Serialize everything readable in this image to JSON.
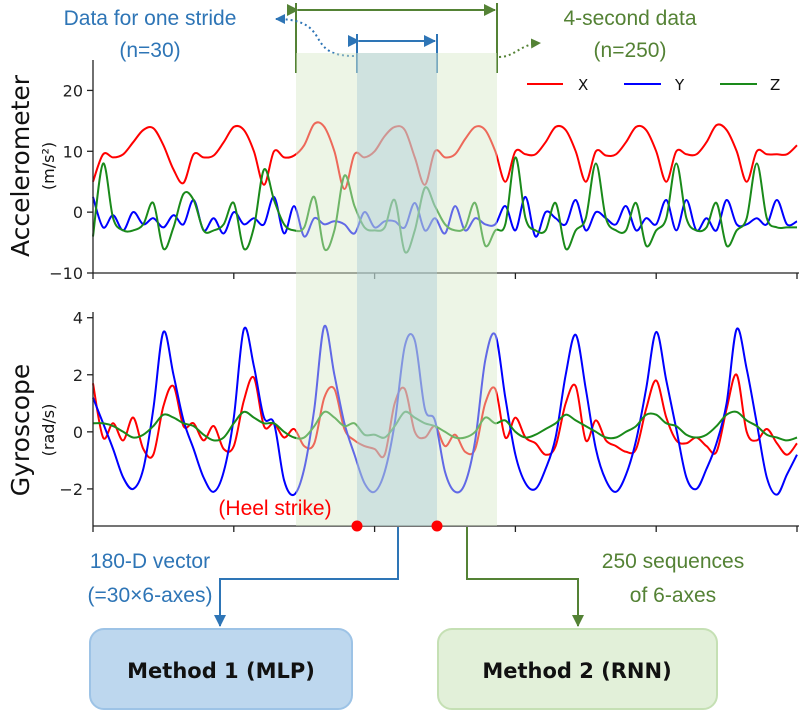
{
  "colors": {
    "x": "#ff0000",
    "y": "#0000ff",
    "z": "#1a8a1a",
    "stride": "#2e75b6",
    "window": "#548235",
    "heel": "#ff0000"
  },
  "annotations": {
    "stride_title": "Data for one stride",
    "stride_n": "(n=30)",
    "window_title": "4-second data",
    "window_n": "(n=250)",
    "heel_strike": "(Heel strike)",
    "mlp_input_1": "180-D vector",
    "mlp_input_2": "(=30×6-axes)",
    "rnn_input_1": "250 sequences",
    "rnn_input_2": "of 6-axes",
    "method1": "Method 1 (MLP)",
    "method2": "Method 2 (RNN)"
  },
  "legend": [
    "X",
    "Y",
    "Z"
  ],
  "chart_data": [
    {
      "type": "line",
      "ylabel": "Accelerometer",
      "yunit": "(m/s²)",
      "ylim": [
        -10,
        25
      ],
      "yticks": [
        "20",
        "10",
        "0",
        "−10"
      ],
      "yticks_values": [
        20,
        10,
        0,
        -10
      ],
      "xlim": [
        0,
        875
      ],
      "grid": false,
      "legend": "top-right",
      "series": [
        {
          "name": "X",
          "values": [
            5,
            9.5,
            9,
            9.5,
            11.5,
            13.5,
            13.8,
            11,
            7,
            4.8,
            9.5,
            9,
            9.3,
            11.5,
            14,
            13.5,
            10,
            4.5,
            10,
            9,
            9.3,
            11,
            14.5,
            14,
            10,
            3.8,
            9.5,
            9,
            10,
            12.5,
            14,
            13.5,
            9,
            4.5,
            10,
            9,
            9.5,
            12,
            14,
            13.5,
            10,
            5,
            10,
            9.5,
            9.5,
            11.5,
            14,
            13.5,
            10,
            5,
            10,
            9.3,
            9.5,
            11.5,
            14,
            13.5,
            10,
            5,
            10,
            9.5,
            9.5,
            11.5,
            14.3,
            13.5,
            10,
            5,
            10,
            9.5,
            9.5,
            9.5,
            11
          ]
        },
        {
          "name": "Y",
          "values": [
            2.5,
            -2.5,
            -0.5,
            -3,
            0,
            -2,
            -1,
            -2.5,
            -0.5,
            -2,
            2,
            -3,
            -1,
            -3.5,
            0,
            -2,
            -1,
            -2,
            2.5,
            -3.5,
            1,
            -4,
            -1,
            -2,
            -1.5,
            -2,
            -3.5,
            0,
            -2.5,
            -1.5,
            -1.5,
            -2.5,
            1.5,
            -3,
            -1,
            -3.5,
            1,
            -3,
            -1,
            -2,
            -2,
            1,
            -3,
            2.5,
            -4,
            0,
            -1,
            -2,
            2,
            -3,
            0,
            -1,
            -2,
            1,
            -3,
            -1,
            -2,
            2,
            -3,
            2,
            -3,
            -1,
            -3,
            2,
            -2,
            -2,
            -1,
            -2,
            2,
            -2,
            -1.5
          ]
        },
        {
          "name": "Z",
          "values": [
            -4,
            8,
            -1,
            -3,
            -3,
            -2,
            1.5,
            -6,
            -2.5,
            3,
            2,
            -3,
            -3,
            -2,
            1.5,
            -6,
            -2.5,
            7,
            2,
            -2,
            -3,
            -2.5,
            2.5,
            -6,
            -3,
            6,
            1,
            -2.5,
            -3,
            -2.5,
            2,
            -6.5,
            -3,
            4,
            1,
            -2,
            -3,
            -2.5,
            1.5,
            -5.5,
            -3,
            -2,
            9,
            -1,
            -3,
            -3,
            1.5,
            -6,
            -3,
            -1,
            8,
            -1,
            -3,
            -3,
            1.5,
            -5.5,
            -3,
            -1,
            8,
            -1,
            -3,
            -2.5,
            1.5,
            -5.5,
            -3,
            -1,
            8,
            -1,
            -2.5,
            -2.5,
            -2.5
          ]
        }
      ]
    },
    {
      "type": "line",
      "ylabel": "Gyroscope",
      "yunit": "(rad/s)",
      "ylim": [
        -3.3,
        4.2
      ],
      "yticks": [
        "4",
        "2",
        "0",
        "−2"
      ],
      "yticks_values": [
        4,
        2,
        0,
        -2
      ],
      "xlim": [
        0,
        875
      ],
      "grid": false,
      "series": [
        {
          "name": "X",
          "values": [
            1.7,
            -0.2,
            0.3,
            -0.3,
            0.5,
            -0.6,
            -0.8,
            0.9,
            1.6,
            0.2,
            0.3,
            -0.3,
            0.2,
            -0.6,
            -0.5,
            1.1,
            1.9,
            0.2,
            0.3,
            -0.2,
            0.1,
            -0.5,
            -0.4,
            1.2,
            1.5,
            0.1,
            -0.3,
            -0.5,
            -0.6,
            -0.8,
            1.0,
            1.5,
            0.0,
            -0.2,
            0.2,
            -0.5,
            -0.1,
            -0.7,
            -0.6,
            1.0,
            1.5,
            -0.2,
            0.5,
            -0.2,
            -0.4,
            -0.8,
            -0.5,
            1.0,
            1.6,
            -0.3,
            0.4,
            -0.3,
            -0.5,
            -0.7,
            -0.6,
            0.8,
            1.8,
            0.5,
            -0.3,
            -0.4,
            -0.2,
            -0.5,
            -0.7,
            0.8,
            2.0,
            0.0,
            -0.3,
            0.1,
            -0.4,
            -0.8,
            -0.4
          ]
        },
        {
          "name": "Y",
          "values": [
            1.2,
            0.3,
            -0.6,
            -1.6,
            -2.0,
            -1.3,
            0.8,
            3.5,
            2.0,
            0.4,
            -0.6,
            -1.6,
            -2.1,
            -1.4,
            0.5,
            3.6,
            2.3,
            0.5,
            0.3,
            -1.7,
            -2.2,
            -1.3,
            0.8,
            3.7,
            2.0,
            0.3,
            -0.8,
            -1.8,
            -2.1,
            -1.4,
            0.3,
            3.0,
            3.2,
            0.8,
            0.4,
            -1.4,
            -2.1,
            -1.8,
            -0.3,
            2.5,
            3.4,
            1.2,
            -0.8,
            -1.8,
            -2.0,
            -1.3,
            -0.2,
            2.0,
            3.4,
            1.5,
            -0.6,
            -1.7,
            -2.1,
            -1.5,
            -0.3,
            1.5,
            3.5,
            1.8,
            0.1,
            -1.6,
            -2.0,
            -1.3,
            -0.4,
            1.0,
            3.6,
            2.2,
            0.3,
            -1.6,
            -2.2,
            -1.5,
            -0.8
          ]
        },
        {
          "name": "Z",
          "values": [
            0.3,
            0.3,
            0.2,
            0.0,
            -0.2,
            -0.1,
            0.2,
            0.6,
            0.5,
            0.3,
            0.2,
            -0.1,
            -0.3,
            -0.2,
            0.3,
            0.7,
            0.5,
            0.3,
            0.3,
            0.0,
            -0.2,
            -0.2,
            0.2,
            0.7,
            0.5,
            0.2,
            0.3,
            -0.1,
            -0.1,
            -0.2,
            0.2,
            0.7,
            0.5,
            0.3,
            0.2,
            0.0,
            -0.2,
            -0.2,
            0.0,
            0.5,
            0.3,
            0.4,
            0.0,
            -0.2,
            -0.1,
            0.1,
            0.3,
            0.6,
            0.4,
            0.2,
            0.0,
            -0.2,
            -0.2,
            0.0,
            0.2,
            0.6,
            0.6,
            0.3,
            0.2,
            -0.1,
            -0.2,
            -0.1,
            0.2,
            0.6,
            0.7,
            0.4,
            0.2,
            -0.1,
            -0.2,
            -0.3,
            -0.2
          ]
        }
      ]
    }
  ]
}
